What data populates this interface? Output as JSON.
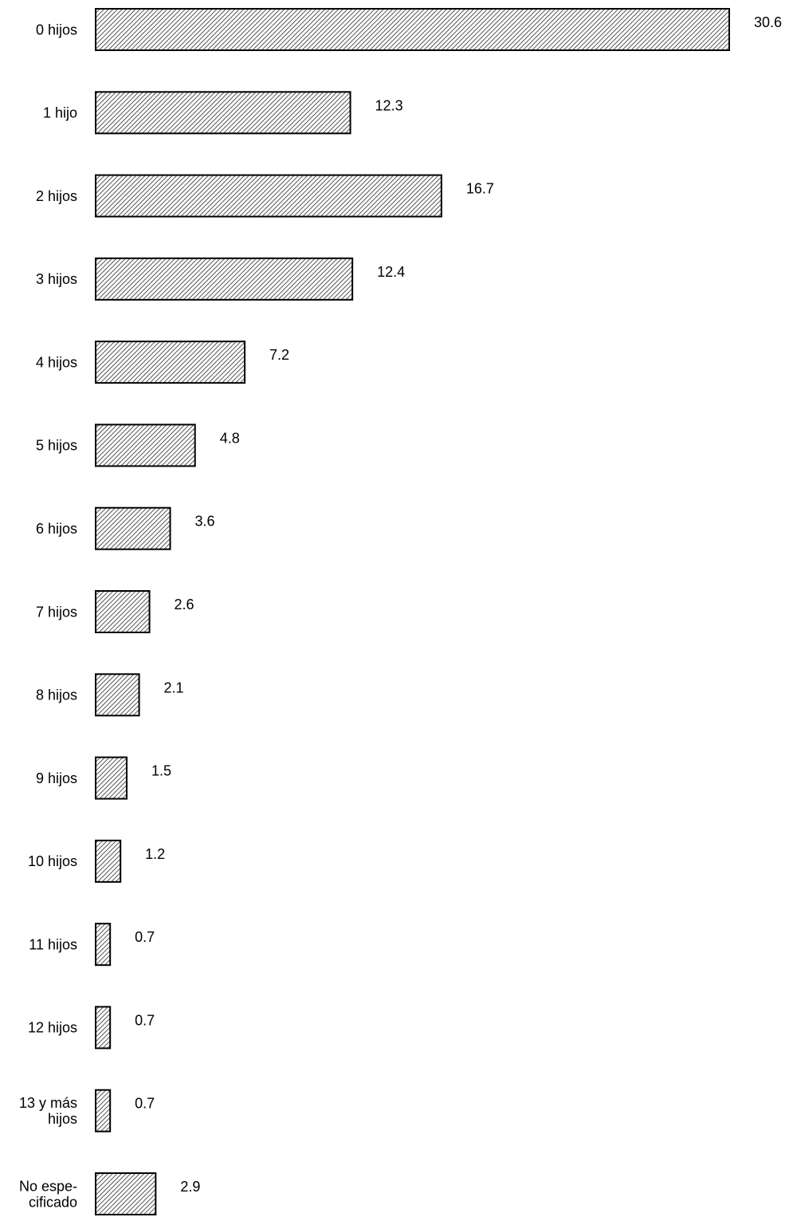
{
  "chart_data": {
    "type": "bar",
    "orientation": "horizontal",
    "categories": [
      "0 hijos",
      "1 hijo",
      "2 hijos",
      "3 hijos",
      "4 hijos",
      "5 hijos",
      "6 hijos",
      "7 hijos",
      "8 hijos",
      "9 hijos",
      "10 hijos",
      "11 hijos",
      "12 hijos",
      "13 y más hijos",
      "No especificado"
    ],
    "category_lines": [
      [
        "0 hijos"
      ],
      [
        "1 hijo"
      ],
      [
        "2 hijos"
      ],
      [
        "3 hijos"
      ],
      [
        "4 hijos"
      ],
      [
        "5 hijos"
      ],
      [
        "6 hijos"
      ],
      [
        "7 hijos"
      ],
      [
        "8 hijos"
      ],
      [
        "9 hijos"
      ],
      [
        "10 hijos"
      ],
      [
        "11 hijos"
      ],
      [
        "12 hijos"
      ],
      [
        "13 y más",
        "hijos"
      ],
      [
        "No espe-",
        "cificado"
      ]
    ],
    "values": [
      30.6,
      12.3,
      16.7,
      12.4,
      7.2,
      4.8,
      3.6,
      2.6,
      2.1,
      1.5,
      1.2,
      0.7,
      0.7,
      0.7,
      2.9
    ],
    "value_labels": [
      "30.6",
      "12.3",
      "16.7",
      "12.4",
      "7.2",
      "4.8",
      "3.6",
      "2.6",
      "2.1",
      "1.5",
      "1.2",
      "0.7",
      "0.7",
      "0.7",
      "2.9"
    ],
    "xlim": [
      0,
      30.6
    ],
    "bar_fill": "hatched",
    "bar_stroke": "#000000",
    "grid": false,
    "legend": "none"
  }
}
